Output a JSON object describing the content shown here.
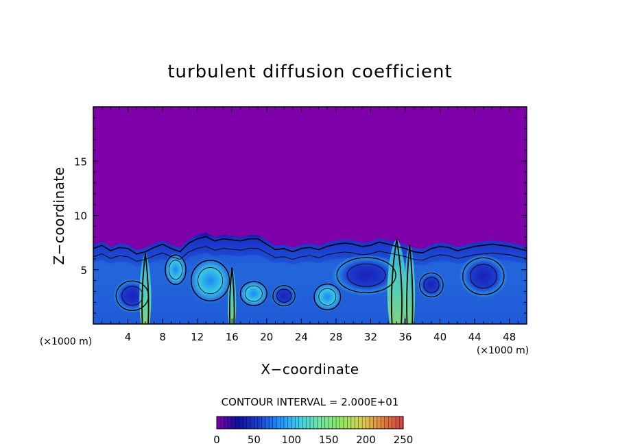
{
  "chart_data": {
    "type": "heatmap",
    "title": "turbulent diffusion coefficient",
    "xlabel": "X−coordinate",
    "ylabel": "Z−coordinate",
    "x_unit": "(×1000 m)",
    "y_unit": "(×1000 m)",
    "xlim": [
      0,
      50
    ],
    "ylim": [
      0,
      20
    ],
    "x_ticks": [
      4,
      8,
      12,
      16,
      20,
      24,
      28,
      32,
      36,
      40,
      44,
      48
    ],
    "x_tick_labels": [
      "4",
      "8",
      "12",
      "16",
      "20",
      "24",
      "28",
      "32",
      "36",
      "40",
      "44",
      "48"
    ],
    "y_ticks": [
      5,
      10,
      15
    ],
    "y_tick_labels": [
      "5",
      "10",
      "15"
    ],
    "contour_interval_label": "CONTOUR INTERVAL = 2.000E+01",
    "colorbar": {
      "range": [
        0,
        250
      ],
      "ticks": [
        0,
        50,
        100,
        150,
        200,
        250
      ],
      "tick_labels": [
        "0",
        "50",
        "100",
        "150",
        "200",
        "250"
      ],
      "colors": [
        "#7f00a8",
        "#1010a0",
        "#1c3ccc",
        "#1e90ff",
        "#40d0e8",
        "#70e8a0",
        "#90e860",
        "#d8d050",
        "#e08040",
        "#d04040"
      ]
    },
    "colors": {
      "background_field": "#7e00a8",
      "turbulent_layer": "#1a3ad0",
      "contour": "#000000"
    },
    "turbulent_layer_top": {
      "x": [
        0,
        1,
        2,
        3,
        4,
        5,
        6,
        7,
        8,
        9,
        10,
        11,
        12,
        13,
        14,
        15,
        16,
        17,
        18,
        19,
        20,
        21,
        22,
        23,
        24,
        25,
        26,
        27,
        28,
        29,
        30,
        31,
        32,
        33,
        34,
        35,
        36,
        37,
        38,
        39,
        40,
        41,
        42,
        43,
        44,
        45,
        46,
        47,
        48,
        49,
        50
      ],
      "z": [
        7.3,
        7.6,
        7.1,
        7.4,
        7.3,
        6.8,
        7.0,
        7.4,
        7.7,
        7.3,
        7.0,
        7.8,
        8.2,
        8.4,
        8.0,
        8.2,
        8.1,
        8.0,
        8.2,
        8.2,
        7.7,
        7.2,
        7.3,
        7.0,
        7.3,
        7.4,
        7.2,
        7.5,
        7.7,
        7.8,
        7.7,
        7.5,
        7.6,
        7.9,
        7.7,
        7.5,
        7.3,
        7.0,
        6.9,
        7.3,
        7.5,
        7.4,
        7.1,
        7.3,
        7.5,
        7.6,
        7.7,
        7.6,
        7.5,
        7.3,
        7.1
      ]
    },
    "eddies": [
      {
        "x": 4.5,
        "z": 2.6,
        "rx": 2.2,
        "rz": 1.6,
        "level": 0
      },
      {
        "x": 13.5,
        "z": 4.0,
        "rx": 2.6,
        "rz": 2.2,
        "level": 3
      },
      {
        "x": 18.5,
        "z": 2.8,
        "rx": 1.8,
        "rz": 1.3,
        "level": 3
      },
      {
        "x": 22.0,
        "z": 2.6,
        "rx": 1.5,
        "rz": 1.1,
        "level": 0
      },
      {
        "x": 31.5,
        "z": 4.5,
        "rx": 4.0,
        "rz": 1.9,
        "level": 0
      },
      {
        "x": 45.0,
        "z": 4.4,
        "rx": 2.8,
        "rz": 2.0,
        "level": 0
      },
      {
        "x": 39.0,
        "z": 3.6,
        "rx": 1.6,
        "rz": 1.3,
        "level": 0
      },
      {
        "x": 27.0,
        "z": 2.5,
        "rx": 1.8,
        "rz": 1.4,
        "level": 3
      },
      {
        "x": 9.5,
        "z": 5.0,
        "rx": 1.4,
        "rz": 1.6,
        "level": 3
      }
    ],
    "plumes": [
      {
        "x": 6.0,
        "z_top": 6.5,
        "width": 1.0,
        "level": 5
      },
      {
        "x": 16.0,
        "z_top": 5.2,
        "width": 0.7,
        "level": 4
      },
      {
        "x": 36.5,
        "z_top": 7.3,
        "width": 0.9,
        "level": 5
      },
      {
        "x": 35.0,
        "z_top": 7.8,
        "width": 1.6,
        "level": 5
      }
    ]
  }
}
